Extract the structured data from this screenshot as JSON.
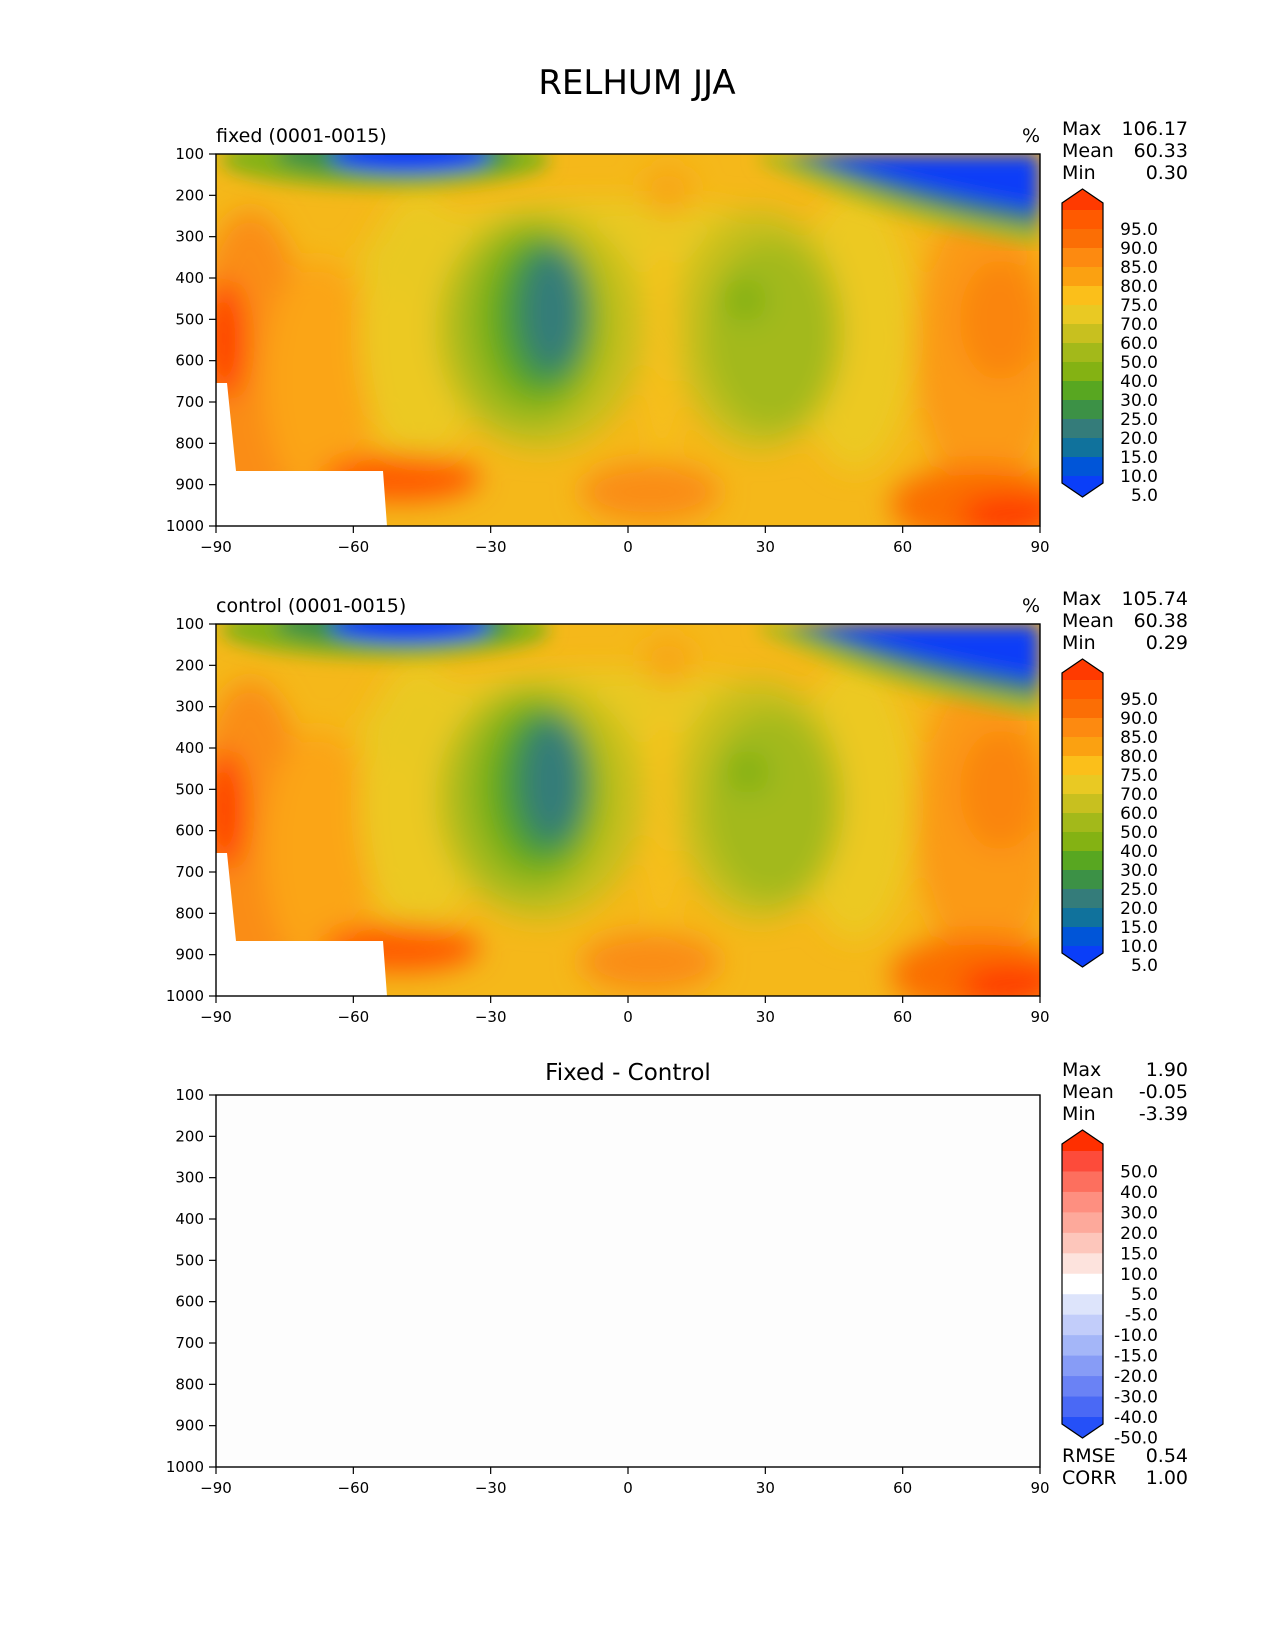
{
  "title": "RELHUM JJA",
  "chart_data": [
    {
      "type": "heatmap",
      "title": "fixed (0001-0015)",
      "units": "%",
      "stats": {
        "Max": "106.17",
        "Mean": "60.33",
        "Min": "0.30"
      },
      "x_ticks": [
        "−90",
        "−60",
        "−30",
        "0",
        "30",
        "60",
        "90"
      ],
      "y_ticks": [
        "100",
        "200",
        "300",
        "400",
        "500",
        "600",
        "700",
        "800",
        "900",
        "1000"
      ],
      "xlim": [
        -90,
        90
      ],
      "ylim": [
        1000,
        100
      ],
      "colorbar": {
        "labels": [
          "95.0",
          "90.0",
          "85.0",
          "80.0",
          "75.0",
          "70.0",
          "60.0",
          "50.0",
          "40.0",
          "30.0",
          "25.0",
          "20.0",
          "15.0",
          "10.0",
          "5.0"
        ],
        "colors": [
          "#ff3a00",
          "#ff5a00",
          "#fb6e05",
          "#fd8a10",
          "#fba111",
          "#fbbf1a",
          "#e9c923",
          "#c8c01f",
          "#a3b91a",
          "#84b213",
          "#58a721",
          "#3c9146",
          "#347c7a",
          "#10729c",
          "#0055d8",
          "#0a3ef8"
        ]
      },
      "grid": false
    },
    {
      "type": "heatmap",
      "title": "control (0001-0015)",
      "units": "%",
      "stats": {
        "Max": "105.74",
        "Mean": "60.38",
        "Min": "0.29"
      },
      "x_ticks": [
        "−90",
        "−60",
        "−30",
        "0",
        "30",
        "60",
        "90"
      ],
      "y_ticks": [
        "100",
        "200",
        "300",
        "400",
        "500",
        "600",
        "700",
        "800",
        "900",
        "1000"
      ],
      "xlim": [
        -90,
        90
      ],
      "ylim": [
        1000,
        100
      ],
      "colorbar": {
        "labels": [
          "95.0",
          "90.0",
          "85.0",
          "80.0",
          "75.0",
          "70.0",
          "60.0",
          "50.0",
          "40.0",
          "30.0",
          "25.0",
          "20.0",
          "15.0",
          "10.0",
          "5.0"
        ],
        "colors": [
          "#ff3a00",
          "#ff5a00",
          "#fb6e05",
          "#fd8a10",
          "#fba111",
          "#fbbf1a",
          "#e9c923",
          "#c8c01f",
          "#a3b91a",
          "#84b213",
          "#58a721",
          "#3c9146",
          "#347c7a",
          "#10729c",
          "#0055d8",
          "#0a3ef8"
        ]
      },
      "grid": false
    },
    {
      "type": "heatmap",
      "title": "Fixed - Control",
      "stats": {
        "Max": "1.90",
        "Mean": "-0.05",
        "Min": "-3.39"
      },
      "metrics": {
        "RMSE": "0.54",
        "CORR": "1.00"
      },
      "x_ticks": [
        "−90",
        "−60",
        "−30",
        "0",
        "30",
        "60",
        "90"
      ],
      "y_ticks": [
        "100",
        "200",
        "300",
        "400",
        "500",
        "600",
        "700",
        "800",
        "900",
        "1000"
      ],
      "xlim": [
        -90,
        90
      ],
      "ylim": [
        1000,
        100
      ],
      "colorbar": {
        "labels": [
          "50.0",
          "40.0",
          "30.0",
          "20.0",
          "15.0",
          "10.0",
          "5.0",
          "-5.0",
          "-10.0",
          "-15.0",
          "-20.0",
          "-30.0",
          "-40.0",
          "-50.0"
        ],
        "colors": [
          "#ff2f00",
          "#fd4b3a",
          "#fd6f5e",
          "#fe8f80",
          "#fda99b",
          "#fdc6bb",
          "#fde3dd",
          "#ffffff",
          "#dde4fb",
          "#c2cdfa",
          "#a4b6f8",
          "#879cf6",
          "#6a82f5",
          "#4a69f5",
          "#2550f8"
        ]
      },
      "grid": false
    }
  ]
}
